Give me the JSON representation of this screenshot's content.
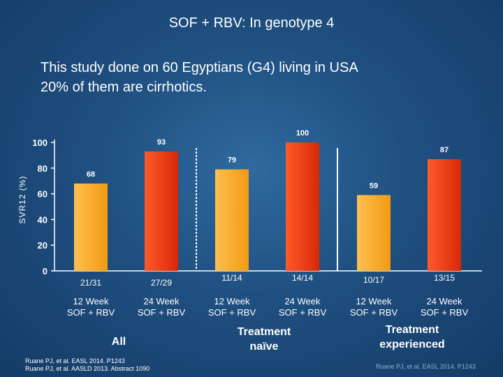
{
  "title": "SOF + RBV:  In genotype 4",
  "subtitle_lines": [
    "This  study done on 60 Egyptians (G4) living in USA",
    "20% of them are cirrhotics."
  ],
  "colors": {
    "orange": "#f5a320",
    "red": "#e8340f",
    "axis": "#ffffff"
  },
  "chart_data": {
    "type": "bar",
    "ylabel": "SVR12 (%)",
    "ylim": [
      0,
      100
    ],
    "yticks": [
      0,
      20,
      40,
      60,
      80,
      100
    ],
    "grid": false,
    "categories": [
      "12 Week SOF + RBV",
      "24 Week SOF + RBV",
      "12 Week SOF + RBV",
      "24 Week SOF + RBV",
      "12 Week SOF + RBV",
      "24 Week SOF + RBV"
    ],
    "bar_name_lines": [
      [
        "12 Week",
        "SOF + RBV"
      ],
      [
        "24 Week",
        "SOF + RBV"
      ],
      [
        "12 Week",
        "SOF + RBV"
      ],
      [
        "24 Week",
        "SOF + RBV"
      ],
      [
        "12 Week",
        "SOF + RBV"
      ],
      [
        "24 Week",
        "SOF + RBV"
      ]
    ],
    "values": [
      68,
      93,
      79,
      100,
      59,
      87
    ],
    "value_labels": [
      "68",
      "93",
      "79",
      "100",
      "59",
      "87"
    ],
    "fractions": [
      "21/31",
      "27/29",
      "11/14",
      "14/14",
      "10/17",
      "13/15"
    ],
    "bar_colors": [
      "orange",
      "red",
      "orange",
      "red",
      "orange",
      "red"
    ],
    "groups": [
      {
        "name_lines": [
          "All"
        ]
      },
      {
        "name_lines": [
          "Treatment",
          "naïve"
        ]
      },
      {
        "name_lines": [
          "Treatment",
          "experienced"
        ]
      }
    ]
  },
  "citations": {
    "left": [
      "Ruane PJ, et al. EASL 2014. P1243",
      "Ruane PJ, et al. AASLD 2013. Abstract 1090"
    ],
    "right": "Ruane PJ, et al. EASL 2014. P1243"
  }
}
